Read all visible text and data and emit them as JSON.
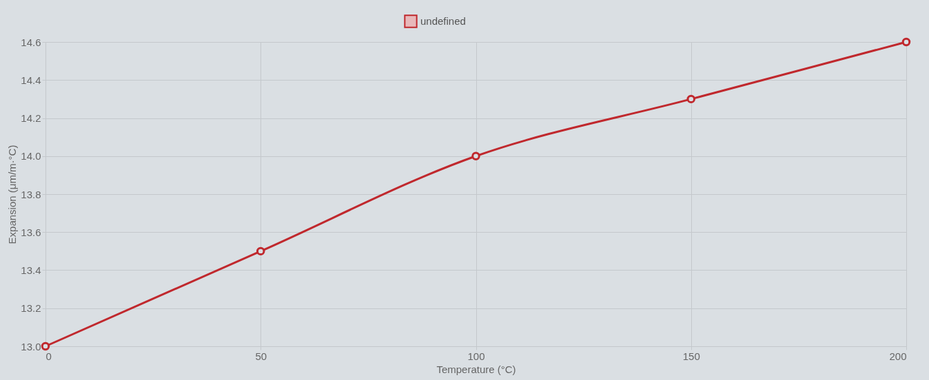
{
  "chart_data": {
    "type": "line",
    "xlabel": "Temperature (°C)",
    "ylabel": "Expansion (μm/m·°C)",
    "x": [
      0,
      50,
      100,
      150,
      200
    ],
    "series": [
      {
        "name": "undefined",
        "color": "#c0282d",
        "values": [
          13.0,
          13.5,
          14.0,
          14.3,
          14.6
        ]
      }
    ],
    "xlim": [
      0,
      200
    ],
    "xticks": [
      0,
      50,
      100,
      150,
      200
    ],
    "ylim": [
      13.0,
      14.6
    ],
    "yticks": [
      {
        "value": 13.0,
        "label": "13.0"
      },
      {
        "value": 13.2,
        "label": "13.2"
      },
      {
        "value": 13.4,
        "label": "13.4"
      },
      {
        "value": 13.6,
        "label": "13.6"
      },
      {
        "value": 13.8,
        "label": "13.8"
      },
      {
        "value": 14.0,
        "label": "14.0"
      },
      {
        "value": 14.2,
        "label": "14.2"
      },
      {
        "value": 14.4,
        "label": "14.4"
      },
      {
        "value": 14.6,
        "label": "14.6"
      }
    ],
    "grid": true,
    "legend": "top",
    "marker": "circle",
    "line_style": "solid"
  }
}
